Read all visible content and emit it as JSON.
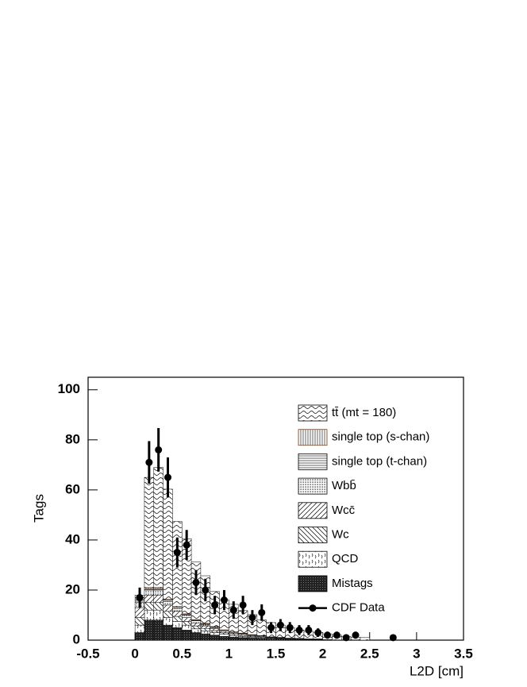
{
  "chart_data": {
    "type": "stacked_histogram",
    "xlabel": "L2D [cm]",
    "ylabel": "Tags",
    "xlim": [
      -0.5,
      3.5
    ],
    "xticks": [
      -0.5,
      0,
      0.5,
      1,
      1.5,
      2,
      2.5,
      3,
      3.5
    ],
    "ylim": [
      0,
      105
    ],
    "yticks": [
      0,
      20,
      40,
      60,
      80,
      100
    ],
    "legend": "upper right",
    "bins": [
      0,
      0.1,
      0.2,
      0.3,
      0.4,
      0.5,
      0.6,
      0.7,
      0.8,
      0.9,
      1,
      1.1,
      1.2,
      1.3,
      1.4,
      1.5,
      1.6,
      1.7,
      1.8,
      1.9,
      2,
      2.1,
      2.2,
      2.3,
      2.4,
      2.5
    ],
    "series": [
      {
        "name": "Mistags",
        "color": "#000000",
        "pattern": "dense",
        "values": [
          3,
          8,
          8,
          6,
          5,
          4,
          3,
          2.5,
          2,
          1.5,
          1.2,
          1,
          0.8,
          0.6,
          0.5,
          0.4,
          0.3,
          0.3,
          0.2,
          0.2,
          0.1,
          0.1,
          0.1,
          0.1,
          0
        ]
      },
      {
        "name": "QCD",
        "color": "#000000",
        "pattern": "qcd",
        "values": [
          3,
          4,
          4,
          3,
          2.5,
          2,
          1.5,
          1.2,
          1,
          0.8,
          0.6,
          0.5,
          0.4,
          0.3,
          0.3,
          0.2,
          0.2,
          0.1,
          0.1,
          0.1,
          0.1,
          0,
          0,
          0,
          0
        ]
      },
      {
        "name": "Wc",
        "color": "#000000",
        "pattern": "antidiag",
        "values": [
          3,
          3,
          3,
          2.5,
          2,
          1.5,
          1.2,
          1,
          0.8,
          0.6,
          0.5,
          0.4,
          0.3,
          0.3,
          0.2,
          0.2,
          0.1,
          0.1,
          0.1,
          0.1,
          0,
          0,
          0,
          0,
          0
        ]
      },
      {
        "name": "Wcc̄",
        "color": "#000000",
        "pattern": "diag",
        "values": [
          4,
          3,
          3,
          2.5,
          2,
          1.5,
          1.2,
          1,
          0.8,
          0.6,
          0.5,
          0.4,
          0.3,
          0.3,
          0.2,
          0.2,
          0.1,
          0.1,
          0.1,
          0.1,
          0,
          0,
          0,
          0,
          0
        ]
      },
      {
        "name": "Wbb̄",
        "color": "#000000",
        "pattern": "dots",
        "values": [
          2,
          2,
          2,
          1.5,
          1.2,
          1,
          0.8,
          0.6,
          0.5,
          0.4,
          0.3,
          0.3,
          0.2,
          0.2,
          0.1,
          0.1,
          0.1,
          0.1,
          0,
          0,
          0,
          0,
          0,
          0,
          0
        ]
      },
      {
        "name": "single top (t-chan)",
        "color": "#000000",
        "pattern": "horizontal",
        "values": [
          1,
          0.6,
          0.6,
          0.5,
          0.4,
          0.3,
          0.3,
          0.2,
          0.2,
          0.1,
          0.1,
          0.1,
          0.1,
          0.1,
          0,
          0,
          0,
          0,
          0,
          0,
          0,
          0,
          0,
          0,
          0
        ]
      },
      {
        "name": "single top (s-chan)",
        "color": "#8b4513",
        "pattern": "vertical",
        "values": [
          0.5,
          0.4,
          0.4,
          0.3,
          0.3,
          0.2,
          0.2,
          0.2,
          0.1,
          0.1,
          0.1,
          0.1,
          0.1,
          0,
          0,
          0,
          0,
          0,
          0,
          0,
          0,
          0,
          0,
          0,
          0
        ]
      },
      {
        "name": "tt̄ (mt = 180)",
        "color": "#000000",
        "pattern": "wave",
        "values": [
          1.5,
          44,
          48,
          44,
          34,
          30,
          23,
          19,
          14,
          12,
          11,
          9,
          8,
          6.3,
          5.7,
          4.9,
          4.2,
          3.3,
          3,
          2.5,
          2.3,
          1.9,
          1.4,
          1.1,
          1
        ]
      }
    ],
    "data": {
      "name": "CDF Data",
      "color": "#000000",
      "x": [
        0.05,
        0.15,
        0.25,
        0.35,
        0.45,
        0.55,
        0.65,
        0.75,
        0.85,
        0.95,
        1.05,
        1.15,
        1.25,
        1.35,
        1.45,
        1.55,
        1.65,
        1.75,
        1.85,
        1.95,
        2.05,
        2.15,
        2.25,
        2.35,
        2.75
      ],
      "values": [
        17,
        71,
        76,
        65,
        35,
        38,
        23,
        20,
        14,
        16,
        12,
        14,
        9,
        11,
        5,
        6,
        5,
        4,
        4,
        3,
        2,
        2,
        1,
        2,
        1
      ],
      "errors": [
        4,
        8.5,
        8.7,
        8,
        6,
        6,
        5,
        4.5,
        3.7,
        4,
        3.5,
        3.7,
        3,
        3.3,
        2.2,
        2.4,
        2.2,
        2,
        2,
        1.7,
        1.4,
        1.4,
        1,
        1.4,
        1
      ]
    }
  }
}
